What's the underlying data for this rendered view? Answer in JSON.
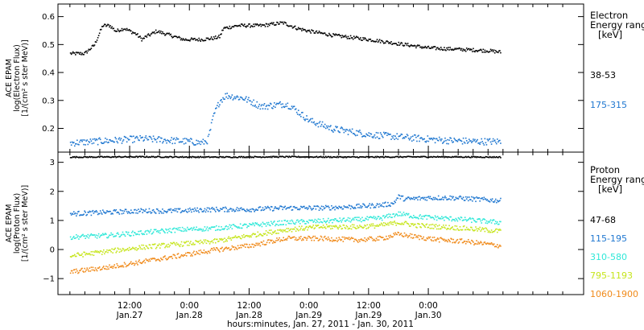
{
  "chart_data": [
    {
      "panel": "electron",
      "type": "scatter",
      "ylabel_lines": [
        "ACE EPAM",
        "log(Electron Flux)",
        "[1/(cm² s ster MeV)]"
      ],
      "ylim": [
        0.115,
        0.645
      ],
      "yticks": [
        0.2,
        0.3,
        0.4,
        0.5,
        0.6
      ],
      "ytick_labels": [
        "0.2",
        "0.3",
        "0.4",
        "0.5",
        "0.6"
      ],
      "legend_title_lines": [
        "Electron",
        "Energy ranges",
        "[keV]"
      ],
      "series": [
        {
          "name": "38-53",
          "color": "#000000",
          "x": [
            0.0,
            0.12,
            0.2,
            0.27,
            0.33,
            0.38,
            0.45,
            0.55,
            0.6,
            0.63,
            0.68,
            0.72,
            0.8,
            0.95,
            1.1,
            1.2,
            1.25,
            1.28,
            1.4,
            1.6,
            1.78,
            1.9,
            2.0,
            2.2,
            2.5,
            2.75,
            3.0,
            3.25,
            3.5,
            3.6
          ],
          "y": [
            0.47,
            0.47,
            0.5,
            0.57,
            0.57,
            0.55,
            0.56,
            0.54,
            0.52,
            0.53,
            0.54,
            0.55,
            0.54,
            0.52,
            0.52,
            0.525,
            0.53,
            0.56,
            0.57,
            0.57,
            0.58,
            0.56,
            0.55,
            0.535,
            0.52,
            0.505,
            0.49,
            0.485,
            0.48,
            0.475
          ]
        },
        {
          "name": "175-315",
          "color": "#1f77d0",
          "x": [
            0.0,
            0.2,
            0.4,
            0.6,
            0.8,
            1.0,
            1.1,
            1.15,
            1.2,
            1.25,
            1.3,
            1.45,
            1.6,
            1.8,
            1.85,
            2.0,
            2.2,
            2.5,
            2.8,
            3.1,
            3.4,
            3.6
          ],
          "y": [
            0.15,
            0.155,
            0.16,
            0.165,
            0.16,
            0.155,
            0.15,
            0.16,
            0.25,
            0.3,
            0.32,
            0.31,
            0.28,
            0.29,
            0.28,
            0.23,
            0.2,
            0.18,
            0.17,
            0.16,
            0.155,
            0.155
          ]
        }
      ]
    },
    {
      "panel": "proton",
      "type": "scatter",
      "ylabel_lines": [
        "ACE EPAM",
        "log(Proton Flux)",
        "[1/(cm² s ster MeV)]"
      ],
      "ylim": [
        -1.55,
        3.35
      ],
      "yticks": [
        -1,
        0,
        1,
        2,
        3
      ],
      "ytick_labels": [
        "−1",
        "0",
        "1",
        "2",
        "3"
      ],
      "legend_title_lines": [
        "Proton",
        "Energy ranges",
        "[keV]"
      ],
      "series": [
        {
          "name": "47-68",
          "color": "#000000",
          "x": [
            0.0,
            0.6,
            1.2,
            1.8,
            2.4,
            3.0,
            3.6
          ],
          "y": [
            3.2,
            3.21,
            3.2,
            3.21,
            3.2,
            3.21,
            3.2
          ]
        },
        {
          "name": "115-195",
          "color": "#1f77d0",
          "x": [
            0.0,
            0.3,
            0.6,
            0.9,
            1.2,
            1.5,
            1.8,
            2.1,
            2.4,
            2.6,
            2.7,
            2.75,
            2.8,
            3.0,
            3.2,
            3.4,
            3.6
          ],
          "y": [
            1.25,
            1.3,
            1.35,
            1.35,
            1.4,
            1.4,
            1.45,
            1.45,
            1.5,
            1.55,
            1.6,
            1.85,
            1.75,
            1.8,
            1.8,
            1.75,
            1.7
          ]
        },
        {
          "name": "310-580",
          "color": "#2fe8d8",
          "x": [
            0.0,
            0.3,
            0.6,
            0.9,
            1.2,
            1.5,
            1.8,
            2.1,
            2.4,
            2.6,
            2.75,
            2.9,
            3.1,
            3.3,
            3.6
          ],
          "y": [
            0.45,
            0.5,
            0.6,
            0.7,
            0.75,
            0.85,
            0.95,
            1.0,
            1.05,
            1.1,
            1.25,
            1.15,
            1.1,
            1.05,
            0.95
          ]
        },
        {
          "name": "795-1193",
          "color": "#c6e51c",
          "x": [
            0.0,
            0.3,
            0.6,
            0.9,
            1.2,
            1.5,
            1.8,
            2.1,
            2.4,
            2.6,
            2.75,
            2.9,
            3.1,
            3.3,
            3.6
          ],
          "y": [
            -0.2,
            -0.05,
            0.1,
            0.2,
            0.3,
            0.5,
            0.7,
            0.8,
            0.8,
            0.85,
            0.95,
            0.85,
            0.8,
            0.75,
            0.65
          ]
        },
        {
          "name": "1060-1900",
          "color": "#f08a1a",
          "x": [
            0.0,
            0.3,
            0.6,
            0.9,
            1.2,
            1.5,
            1.8,
            2.1,
            2.4,
            2.6,
            2.75,
            2.9,
            3.1,
            3.3,
            3.6
          ],
          "y": [
            -0.75,
            -0.6,
            -0.4,
            -0.2,
            0.0,
            0.15,
            0.4,
            0.4,
            0.35,
            0.4,
            0.55,
            0.45,
            0.35,
            0.3,
            0.15
          ]
        }
      ]
    }
  ],
  "x_axis": {
    "xlim": [
      -0.1,
      4.3
    ],
    "tick_positions": [
      0.5,
      1.0,
      1.5,
      2.0,
      2.5,
      3.0
    ],
    "tick_labels_time": [
      "12:00",
      "0:00",
      "12:00",
      "0:00",
      "12:00",
      "0:00"
    ],
    "tick_labels_date": [
      "Jan.27",
      "Jan.28",
      "Jan.28",
      "Jan.29",
      "Jan.29",
      "Jan.30"
    ],
    "xlabel": "hours:minutes, Jan. 27, 2011 - Jan. 30, 2011"
  }
}
